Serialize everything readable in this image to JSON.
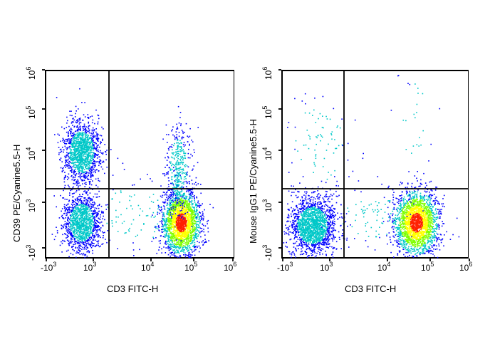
{
  "chart_data": [
    {
      "type": "scatter",
      "title": "",
      "xlabel": "CD3 FITC-H",
      "ylabel": "CD39 PE/Cyanine5.5-H",
      "x_ticks": [
        "-10^3",
        "10^3",
        "10^4",
        "10^5",
        "10^6"
      ],
      "y_ticks": [
        "-10^3",
        "10^3",
        "10^4",
        "10^5",
        "10^6"
      ],
      "scale": "biexponential",
      "gates": {
        "vertical_x": "~1.8x10^3",
        "horizontal_y": "~1.8x10^3"
      },
      "populations": [
        {
          "name": "CD3- CD39+",
          "x_center": "~4x10^2",
          "y_center": "~8x10^3",
          "density": "medium"
        },
        {
          "name": "CD3- CD39-",
          "x_center": "~4x10^2",
          "y_center": "~3x10^2",
          "density": "medium"
        },
        {
          "name": "CD3+ CD39-",
          "x_center": "~5x10^4",
          "y_center": "~3x10^2",
          "density": "high"
        },
        {
          "name": "CD3+ CD39+",
          "x_center": "~5x10^4",
          "y_center": "~5x10^3",
          "density": "low"
        }
      ]
    },
    {
      "type": "scatter",
      "title": "",
      "xlabel": "CD3 FITC-H",
      "ylabel": "Mouse IgG1 PE/Cyanine5.5-H",
      "x_ticks": [
        "-10^3",
        "10^3",
        "10^4",
        "10^5",
        "10^6"
      ],
      "y_ticks": [
        "-10^3",
        "10^3",
        "10^4",
        "10^5",
        "10^6"
      ],
      "scale": "biexponential",
      "gates": {
        "vertical_x": "~1.8x10^3",
        "horizontal_y": "~1.8x10^3"
      },
      "populations": [
        {
          "name": "CD3- isotype-",
          "x_center": "~3x10^2",
          "y_center": "~3x10^2",
          "density": "medium"
        },
        {
          "name": "CD3+ isotype-",
          "x_center": "~5x10^4",
          "y_center": "~3x10^2",
          "density": "high"
        },
        {
          "name": "CD3- isotype+ (sparse)",
          "x_center": "~5x10^2",
          "y_center": "~2x10^4",
          "density": "very low"
        }
      ]
    }
  ],
  "panels": [
    {
      "ylabel": "CD39 PE/Cyanine5.5-H",
      "xlabel": "CD3 FITC-H"
    },
    {
      "ylabel": "Mouse IgG1 PE/Cyanine5.5-H",
      "xlabel": "CD3 FITC-H"
    }
  ],
  "ticks": {
    "x": [
      {
        "base": "-10",
        "exp": "3"
      },
      {
        "base": "10",
        "exp": "3"
      },
      {
        "base": "10",
        "exp": "4"
      },
      {
        "base": "10",
        "exp": "5"
      },
      {
        "base": "10",
        "exp": "6"
      }
    ],
    "y": [
      {
        "base": "10",
        "exp": "6"
      },
      {
        "base": "10",
        "exp": "5"
      },
      {
        "base": "10",
        "exp": "4"
      },
      {
        "base": "10",
        "exp": "3"
      },
      {
        "base": "-10",
        "exp": "3"
      }
    ]
  },
  "colors": {
    "low": "#0000ff",
    "mid": "#00c8c8",
    "midhigh": "#7fff00",
    "high": "#ffff00",
    "peak": "#ff2000",
    "line": "#000000"
  }
}
